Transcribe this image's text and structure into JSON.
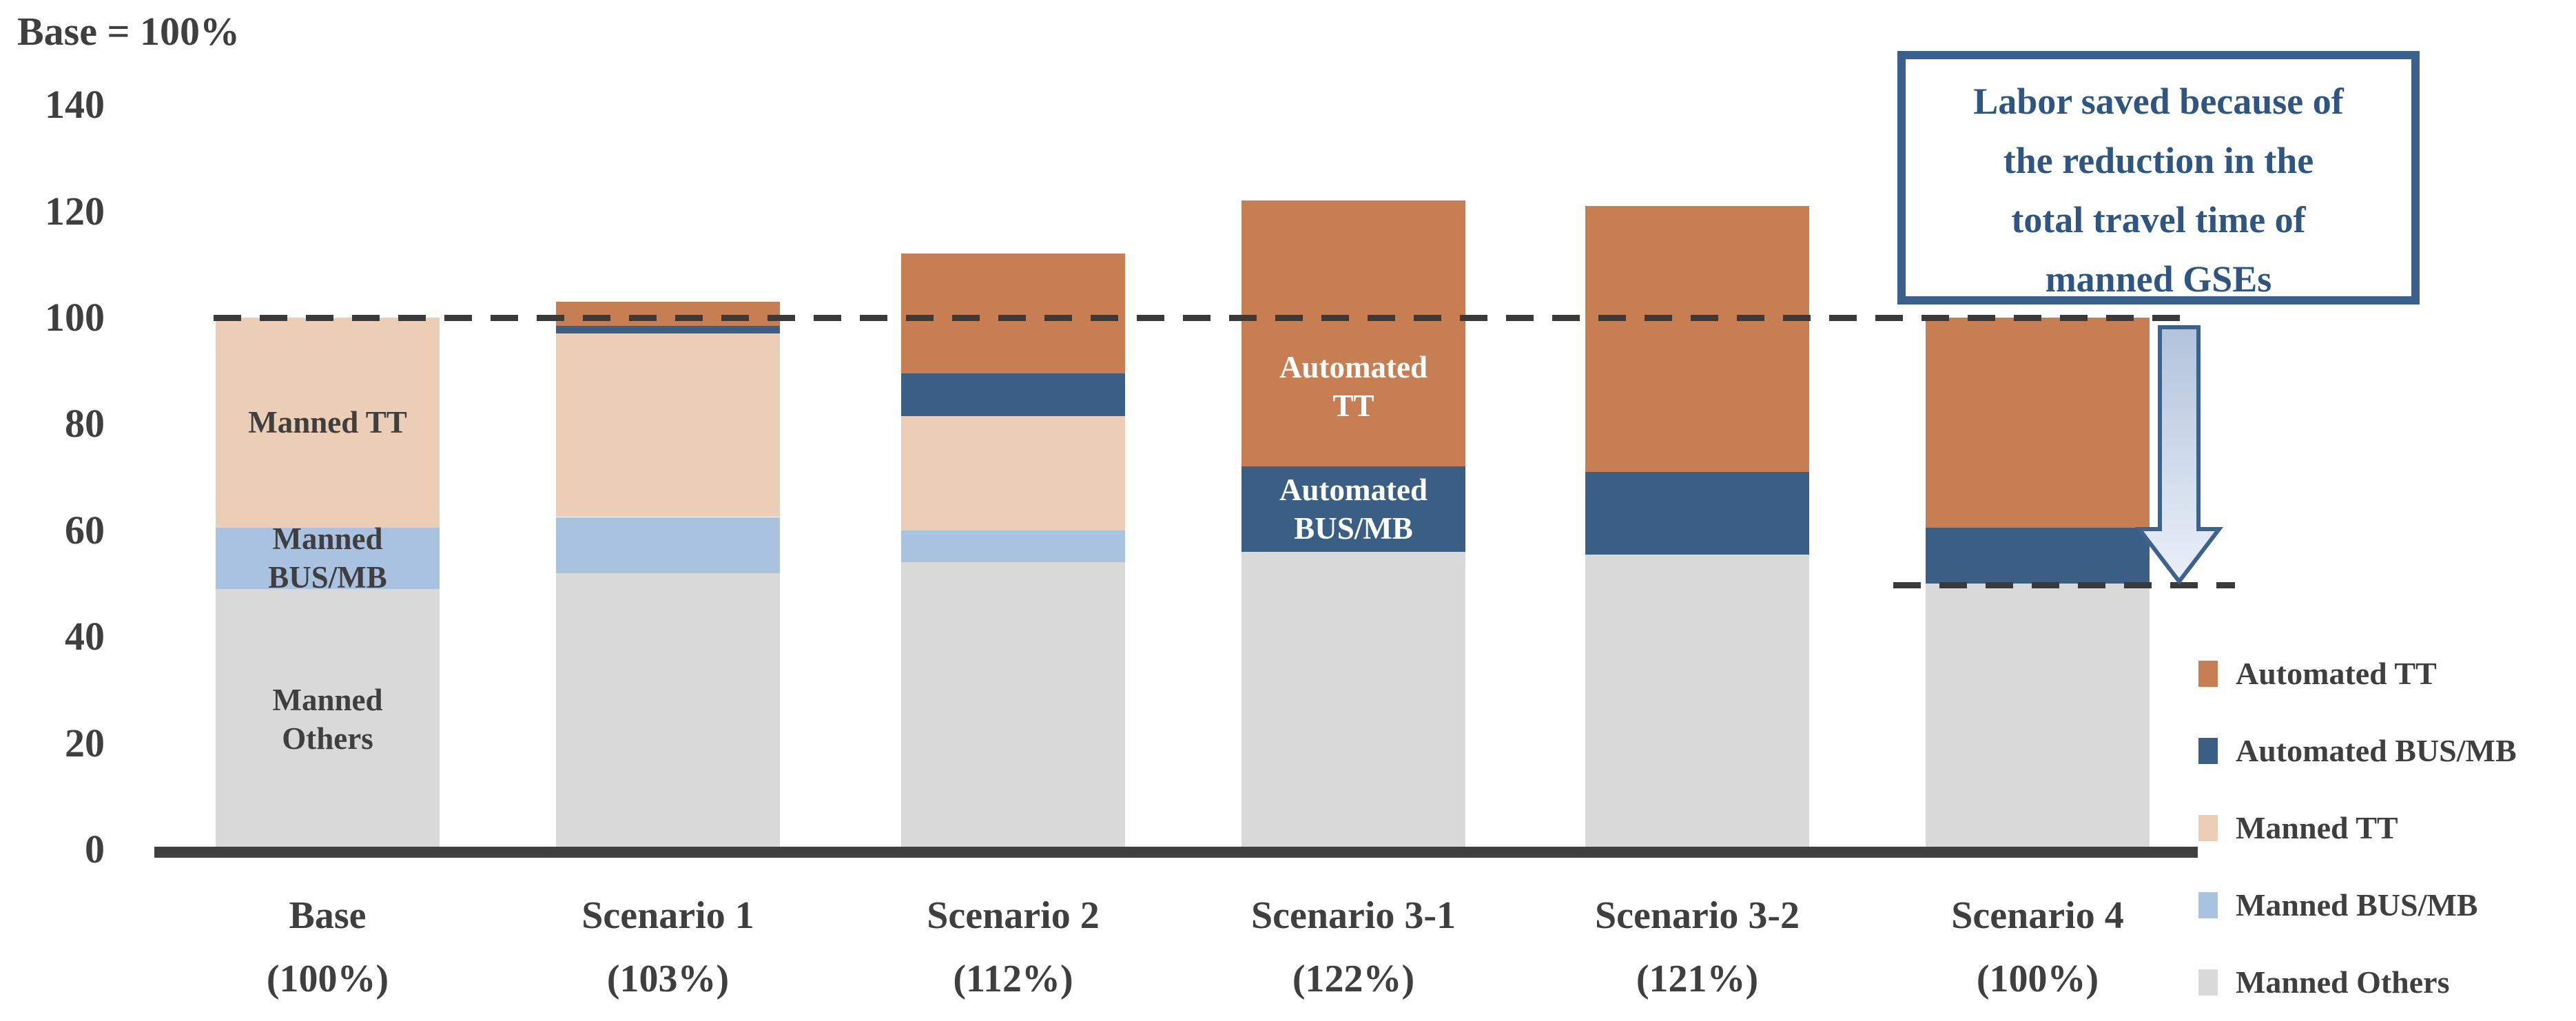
{
  "page": {
    "background": "#FFFFFF"
  },
  "axis_note": "Base = 100%",
  "chart_data": {
    "type": "bar",
    "stacked": true,
    "title": "",
    "xlabel": "",
    "ylabel": "",
    "ylim": [
      0,
      140
    ],
    "yticks": [
      140,
      120,
      100,
      80,
      60,
      40,
      20,
      0
    ],
    "grid": false,
    "legend_position": "right",
    "categories": [
      {
        "label": "Base",
        "sub": "(100%)",
        "total_pct": 100
      },
      {
        "label": "Scenario 1",
        "sub": "(103%)",
        "total_pct": 103
      },
      {
        "label": "Scenario 2",
        "sub": "(112%)",
        "total_pct": 112
      },
      {
        "label": "Scenario 3-1",
        "sub": "(122%)",
        "total_pct": 122
      },
      {
        "label": "Scenario 3-2",
        "sub": "(121%)",
        "total_pct": 121
      },
      {
        "label": "Scenario 4",
        "sub": "(100%)",
        "total_pct": 100
      }
    ],
    "series": [
      {
        "name": "Manned Others",
        "color": "#D9D9D9",
        "values": [
          49,
          52,
          54,
          56,
          55.5,
          50
        ]
      },
      {
        "name": "Manned BUS/MB",
        "color": "#A9C2DF",
        "values": [
          11.5,
          10.5,
          6,
          0,
          0,
          0
        ]
      },
      {
        "name": "Manned TT",
        "color": "#ECCDB5",
        "values": [
          39.5,
          34.5,
          21.5,
          0,
          0,
          0
        ]
      },
      {
        "name": "Automated BUS/MB",
        "color": "#3B5E84",
        "values": [
          0,
          1.5,
          8,
          16,
          15.5,
          10.5
        ]
      },
      {
        "name": "Automated TT",
        "color": "#C87E53",
        "values": [
          0,
          4.5,
          22.5,
          50,
          50,
          39.5
        ]
      }
    ],
    "legend_order": [
      "Automated TT",
      "Automated BUS/MB",
      "Manned TT",
      "Manned BUS/MB",
      "Manned Others"
    ],
    "reference_lines": [
      {
        "value": 100,
        "style": "dashed",
        "color": "#3A3A3A",
        "x1": 310,
        "x2": 3186
      },
      {
        "value": 49.8,
        "style": "dashed",
        "color": "#3A3A3A",
        "x1": 2748,
        "x2": 3244
      }
    ],
    "bar_annotations": [
      {
        "cat": 0,
        "series": "Manned TT",
        "lines": [
          "Manned TT"
        ],
        "color": "#3F3F3F"
      },
      {
        "cat": 0,
        "series": "Manned BUS/MB",
        "lines": [
          "Manned",
          "BUS/MB"
        ],
        "color": "#3F3F3F"
      },
      {
        "cat": 0,
        "series": "Manned Others",
        "lines": [
          "Manned",
          "Others"
        ],
        "color": "#3F3F3F"
      },
      {
        "cat": 3,
        "series": "Automated TT",
        "lines": [
          "Automated",
          "TT"
        ],
        "color": "#FFFFFF",
        "center_value": 87
      },
      {
        "cat": 3,
        "series": "Automated BUS/MB",
        "lines": [
          "Automated",
          "BUS/MB"
        ],
        "color": "#FFFFFF"
      }
    ]
  },
  "callout": {
    "lines": [
      "Labor saved because of",
      "the reduction in the",
      "total travel time of",
      "manned GSEs"
    ],
    "border_color": "#3A618E",
    "text_color": "#2F5682"
  },
  "arrow": {
    "meaning": "labor-saved-down-arrow",
    "outline": "#3C6290",
    "fill_top": "#B3C3DC",
    "fill_bottom": "#EAF0F8"
  }
}
